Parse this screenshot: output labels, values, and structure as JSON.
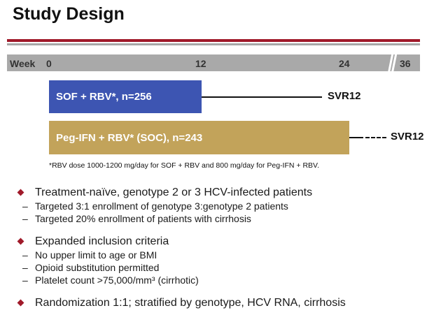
{
  "title": "Study Design",
  "timeline": {
    "label": "Week",
    "ticks": [
      "0",
      "12",
      "24",
      "36"
    ]
  },
  "arms": [
    {
      "label": "SOF + RBV*, n=256",
      "endpoint": "SVR12",
      "color": "#3d55b2"
    },
    {
      "label": "Peg-IFN + RBV* (SOC), n=243",
      "endpoint": "SVR12",
      "color": "#c2a35a"
    }
  ],
  "footnote": "*RBV dose 1000-1200 mg/day for SOF + RBV and 800 mg/day for Peg-IFN + RBV.",
  "bullets": [
    {
      "text": "Treatment-naïve, genotype 2 or 3 HCV-infected patients",
      "subs": [
        "Targeted 3:1 enrollment of genotype 3:genotype 2 patients",
        "Targeted 20% enrollment of patients with cirrhosis"
      ]
    },
    {
      "text": "Expanded inclusion criteria",
      "subs": [
        "No upper limit to age or BMI",
        "Opioid substitution permitted",
        "Platelet count >75,000/mm³ (cirrhotic)"
      ]
    },
    {
      "text": "Randomization 1:1; stratified by genotype, HCV RNA, cirrhosis",
      "subs": []
    }
  ],
  "colors": {
    "accent": "#a01a2a",
    "timeline": "#a9a9a9"
  }
}
